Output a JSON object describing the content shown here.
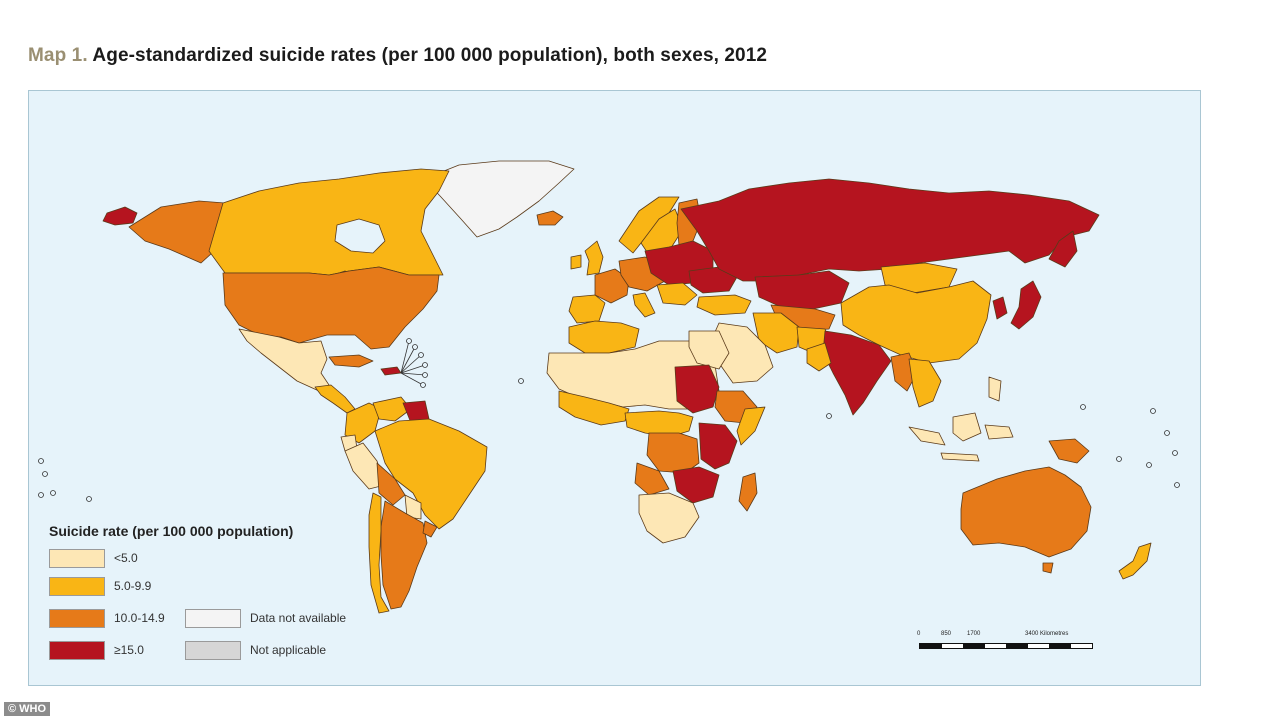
{
  "title": {
    "prefix": "Map 1.",
    "text": "Age-standardized suicide rates (per 100 000 population), both sexes, 2012"
  },
  "colors": {
    "ocean": "#e6f3fa",
    "lt5": "#fde7b5",
    "r5_9": "#f9b515",
    "r10_14": "#e67a19",
    "ge15": "#b5141f",
    "na": "#f4f4f4",
    "notapp": "#d6d6d6",
    "border": "#5a3a1a"
  },
  "legend": {
    "title": "Suicide rate (per 100 000 population)",
    "items": [
      {
        "label": "<5.0",
        "color": "#fde7b5"
      },
      {
        "label": "5.0-9.9",
        "color": "#f9b515"
      },
      {
        "label": "10.0-14.9",
        "color": "#e67a19"
      },
      {
        "label": "≥15.0",
        "color": "#b5141f"
      },
      {
        "label": "Data not available",
        "color": "#f4f4f4"
      },
      {
        "label": "Not applicable",
        "color": "#d6d6d6"
      }
    ]
  },
  "scalebar": {
    "labels": [
      "0",
      "850",
      "1700",
      "3400 Kilometres"
    ]
  },
  "credit": "© WHO"
}
